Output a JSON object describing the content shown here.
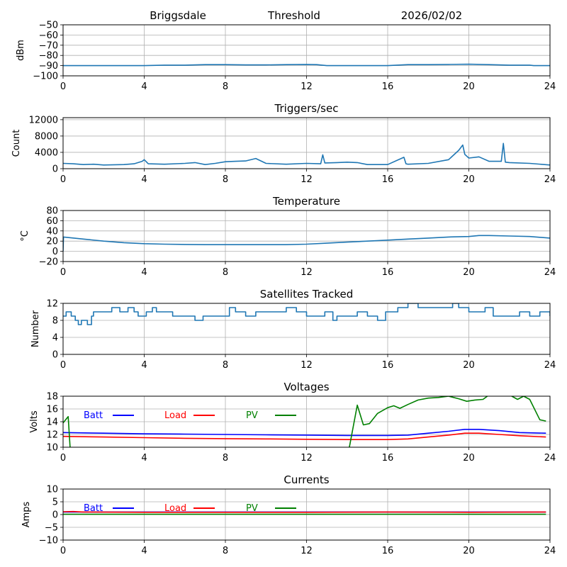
{
  "header": {
    "station": "Briggsdale",
    "mode": "Threshold",
    "date": "2026/02/02"
  },
  "chart_data": [
    {
      "id": "signal",
      "type": "line",
      "title": "",
      "xlabel": "",
      "ylabel": "dBm",
      "xlim": [
        0,
        24
      ],
      "ylim": [
        -100,
        -50
      ],
      "xticks": [
        0,
        4,
        8,
        12,
        16,
        20,
        24
      ],
      "yticks": [
        -100,
        -90,
        -80,
        -70,
        -60,
        -50
      ],
      "ytick_labels": [
        "−100",
        "−90",
        "−80",
        "−70",
        "−60",
        "−50"
      ],
      "grid": true,
      "series": [
        {
          "name": "signal",
          "color": "#1f77b4",
          "x": [
            0,
            1,
            2,
            3,
            4,
            5,
            6,
            7,
            8,
            9,
            10,
            11,
            12,
            12.5,
            13,
            14,
            15,
            16,
            17,
            18,
            19,
            20,
            21,
            22,
            23,
            23.2,
            24
          ],
          "y": [
            -90,
            -90,
            -90,
            -90,
            -90,
            -89.5,
            -89.5,
            -89,
            -89,
            -89.3,
            -89.3,
            -89,
            -88.8,
            -89,
            -90,
            -90,
            -90,
            -90,
            -89,
            -89,
            -88.8,
            -88.6,
            -89,
            -89.5,
            -89.5,
            -90,
            -90
          ]
        }
      ]
    },
    {
      "id": "triggers",
      "type": "line",
      "title": "Triggers/sec",
      "xlabel": "",
      "ylabel": "Count",
      "xlim": [
        0,
        24
      ],
      "ylim": [
        0,
        12500
      ],
      "xticks": [
        0,
        4,
        8,
        12,
        16,
        20,
        24
      ],
      "yticks": [
        0,
        4000,
        8000,
        12000
      ],
      "ytick_labels": [
        "0",
        "4000",
        "8000",
        "12000"
      ],
      "grid": true,
      "series": [
        {
          "name": "triggers",
          "color": "#1f77b4",
          "x": [
            0,
            0.5,
            1,
            1.5,
            2,
            3,
            3.5,
            3.9,
            4,
            4.2,
            5,
            6,
            6.5,
            7,
            7.5,
            8,
            8.5,
            9,
            9.5,
            10,
            11,
            12,
            12.7,
            12.8,
            12.9,
            13.5,
            14,
            14.5,
            15,
            16,
            16.8,
            16.9,
            17,
            18,
            19,
            19.5,
            19.7,
            19.8,
            20,
            20.5,
            21,
            21.6,
            21.7,
            21.8,
            22,
            23,
            24
          ],
          "y": [
            1300,
            1200,
            1000,
            1100,
            900,
            1000,
            1200,
            1800,
            2200,
            1200,
            1100,
            1300,
            1500,
            1000,
            1300,
            1700,
            1800,
            1900,
            2500,
            1300,
            1100,
            1300,
            1200,
            3400,
            1400,
            1500,
            1600,
            1500,
            1000,
            1000,
            2800,
            1200,
            1100,
            1300,
            2200,
            4500,
            5800,
            3500,
            2600,
            2900,
            1800,
            1800,
            6200,
            1600,
            1500,
            1300,
            900
          ]
        }
      ]
    },
    {
      "id": "temperature",
      "type": "line",
      "title": "Temperature",
      "xlabel": "",
      "ylabel": "°C",
      "xlim": [
        0,
        24
      ],
      "ylim": [
        -20,
        80
      ],
      "xticks": [
        0,
        4,
        8,
        12,
        16,
        20,
        24
      ],
      "yticks": [
        -20,
        0,
        20,
        40,
        60,
        80
      ],
      "ytick_labels": [
        "−20",
        "0",
        "20",
        "40",
        "60",
        "80"
      ],
      "grid": true,
      "series": [
        {
          "name": "temperature",
          "color": "#1f77b4",
          "x": [
            0,
            0.02,
            1,
            2,
            3,
            4,
            5,
            6,
            7,
            8,
            9,
            10,
            11,
            12,
            13,
            14,
            15,
            16,
            17,
            18,
            19,
            20,
            20.5,
            21,
            22,
            23,
            24
          ],
          "y": [
            0,
            28,
            24,
            20,
            17,
            15,
            14,
            13.5,
            13,
            13,
            13,
            13,
            13,
            14,
            16,
            18,
            20,
            22,
            24,
            26,
            28,
            29,
            31,
            31,
            30,
            29,
            26
          ]
        }
      ]
    },
    {
      "id": "satellites",
      "type": "line",
      "title": "Satellites Tracked",
      "xlabel": "",
      "ylabel": "Number",
      "xlim": [
        0,
        24
      ],
      "ylim": [
        0,
        12
      ],
      "xticks": [
        0,
        4,
        8,
        12,
        16,
        20,
        24
      ],
      "yticks": [
        0,
        4,
        8,
        12
      ],
      "ytick_labels": [
        "0",
        "4",
        "8",
        "12"
      ],
      "grid": true,
      "step": true,
      "series": [
        {
          "name": "satellites",
          "color": "#1f77b4",
          "x": [
            0,
            0.15,
            0.4,
            0.6,
            0.75,
            0.9,
            1.2,
            1.4,
            1.5,
            1.8,
            2.4,
            2.8,
            3.2,
            3.5,
            3.7,
            4.1,
            4.4,
            4.6,
            5.0,
            5.4,
            5.6,
            6.5,
            6.9,
            7.9,
            8.2,
            8.5,
            9.0,
            9.5,
            10.0,
            11.0,
            11.5,
            12.0,
            12.5,
            12.9,
            13.3,
            13.5,
            14.0,
            14.5,
            15.0,
            15.5,
            15.9,
            16.5,
            17.0,
            17.5,
            17.8,
            19.2,
            19.5,
            20.0,
            20.8,
            21.2,
            22.0,
            22.5,
            23.0,
            23.5,
            24.0
          ],
          "y": [
            9,
            10,
            9,
            8,
            7,
            8,
            7,
            9,
            10,
            10,
            11,
            10,
            11,
            10,
            9,
            10,
            11,
            10,
            10,
            9,
            9,
            8,
            9,
            9,
            11,
            10,
            9,
            10,
            10,
            11,
            10,
            9,
            9,
            10,
            8,
            9,
            9,
            10,
            9,
            8,
            10,
            11,
            12,
            11,
            11,
            12,
            11,
            10,
            11,
            9,
            9,
            10,
            9,
            10,
            9
          ]
        }
      ]
    },
    {
      "id": "voltages",
      "type": "line",
      "title": "Voltages",
      "xlabel": "",
      "ylabel": "Volts",
      "xlim": [
        0,
        24
      ],
      "ylim": [
        10,
        18
      ],
      "xticks": [
        0,
        4,
        8,
        12,
        16,
        20,
        24
      ],
      "yticks": [
        10,
        12,
        14,
        16,
        18
      ],
      "ytick_labels": [
        "10",
        "12",
        "14",
        "16",
        "18"
      ],
      "grid": true,
      "legend": {
        "placement": "top-left-inline",
        "entries": [
          "Batt",
          "Load",
          "PV"
        ]
      },
      "series": [
        {
          "name": "Batt",
          "color": "#0000ff",
          "x": [
            0,
            2,
            4,
            6,
            8,
            10,
            12,
            14,
            16,
            17,
            18,
            19,
            19.8,
            20.5,
            21.5,
            22.5,
            23.8
          ],
          "y": [
            12.3,
            12.2,
            12.1,
            12.05,
            12.0,
            11.95,
            11.9,
            11.85,
            11.85,
            11.9,
            12.2,
            12.5,
            12.8,
            12.8,
            12.6,
            12.3,
            12.2
          ]
        },
        {
          "name": "Load",
          "color": "#ff0000",
          "x": [
            0,
            2,
            4,
            6,
            8,
            10,
            12,
            14,
            16,
            17,
            18,
            19,
            19.8,
            20.5,
            21.5,
            22.5,
            23.8
          ],
          "y": [
            11.7,
            11.6,
            11.5,
            11.4,
            11.35,
            11.3,
            11.25,
            11.2,
            11.2,
            11.3,
            11.6,
            11.9,
            12.2,
            12.2,
            12.0,
            11.8,
            11.6
          ]
        },
        {
          "name": "PV",
          "color": "#008000",
          "x": [
            0,
            0.25,
            0.35,
            14.1,
            14.5,
            14.8,
            15.1,
            15.5,
            16.0,
            16.3,
            16.6,
            17.0,
            17.5,
            18.0,
            18.5,
            19.0,
            19.5,
            19.9,
            20.3,
            20.7,
            21.0,
            22.0,
            22.4,
            22.7,
            23.0,
            23.5,
            23.8
          ],
          "y": [
            13.8,
            14.8,
            9.8,
            9.8,
            16.6,
            13.5,
            13.7,
            15.3,
            16.2,
            16.5,
            16.1,
            16.7,
            17.4,
            17.7,
            17.8,
            18.0,
            17.6,
            17.2,
            17.4,
            17.5,
            18.2,
            18.2,
            17.5,
            18.0,
            17.5,
            14.3,
            14.1
          ]
        }
      ]
    },
    {
      "id": "currents",
      "type": "line",
      "title": "Currents",
      "xlabel": "",
      "ylabel": "Amps",
      "xlim": [
        0,
        24
      ],
      "ylim": [
        -10,
        10
      ],
      "xticks": [
        0,
        4,
        8,
        12,
        16,
        20,
        24
      ],
      "yticks": [
        -10,
        -5,
        0,
        5,
        10
      ],
      "ytick_labels": [
        "−10",
        "−5",
        "0",
        "5",
        "10"
      ],
      "grid": true,
      "legend": {
        "placement": "top-left-inline",
        "entries": [
          "Batt",
          "Load",
          "PV"
        ]
      },
      "series": [
        {
          "name": "Batt",
          "color": "#0000ff",
          "x": [
            0,
            23.8
          ],
          "y": [
            1.0,
            1.0
          ]
        },
        {
          "name": "Load",
          "color": "#ff0000",
          "x": [
            0,
            0.5,
            1,
            4,
            8,
            12,
            16,
            20,
            23.8
          ],
          "y": [
            1.1,
            1.2,
            1.0,
            0.9,
            0.9,
            0.9,
            1.0,
            0.9,
            1.0
          ]
        },
        {
          "name": "PV",
          "color": "#008000",
          "x": [
            0,
            23.8
          ],
          "y": [
            0.1,
            0.1
          ]
        }
      ]
    }
  ]
}
